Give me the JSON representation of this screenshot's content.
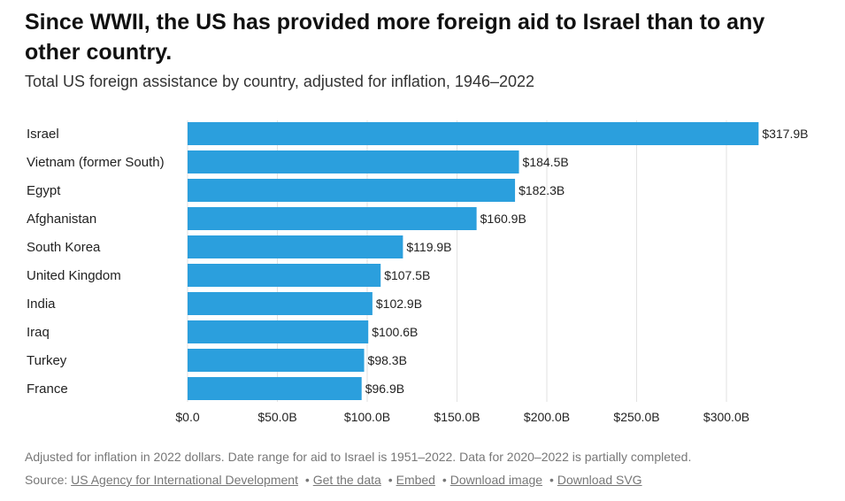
{
  "header": {
    "title": "Since WWII, the US has provided more foreign aid to Israel than to any other country.",
    "subtitle": "Total US foreign assistance by country, adjusted for inflation, 1946–2022"
  },
  "chart_data": {
    "type": "bar",
    "orientation": "horizontal",
    "categories": [
      "Israel",
      "Vietnam (former South)",
      "Egypt",
      "Afghanistan",
      "South Korea",
      "United Kingdom",
      "India",
      "Iraq",
      "Turkey",
      "France"
    ],
    "values": [
      317.9,
      184.5,
      182.3,
      160.9,
      119.9,
      107.5,
      102.9,
      100.6,
      98.3,
      96.9
    ],
    "value_labels": [
      "$317.9B",
      "$184.5B",
      "$182.3B",
      "$160.9B",
      "$119.9B",
      "$107.5B",
      "$102.9B",
      "$100.6B",
      "$98.3B",
      "$96.9B"
    ],
    "x_ticks": [
      0,
      50,
      100,
      150,
      200,
      250,
      300
    ],
    "x_tick_labels": [
      "$0.0",
      "$50.0B",
      "$100.0B",
      "$150.0B",
      "$200.0B",
      "$250.0B",
      "$300.0B"
    ],
    "xlim": [
      0,
      320
    ],
    "bar_color": "#2b9fdd",
    "grid": true
  },
  "footer": {
    "note": "Adjusted for inflation in 2022 dollars. Date range for aid to Israel is 1951–2022. Data for 2020–2022 is partially completed.",
    "source_prefix": "Source: ",
    "source_link": "US Agency for International Development",
    "links": [
      "Get the data",
      "Embed",
      "Download image",
      "Download SVG"
    ],
    "separator": "•"
  }
}
